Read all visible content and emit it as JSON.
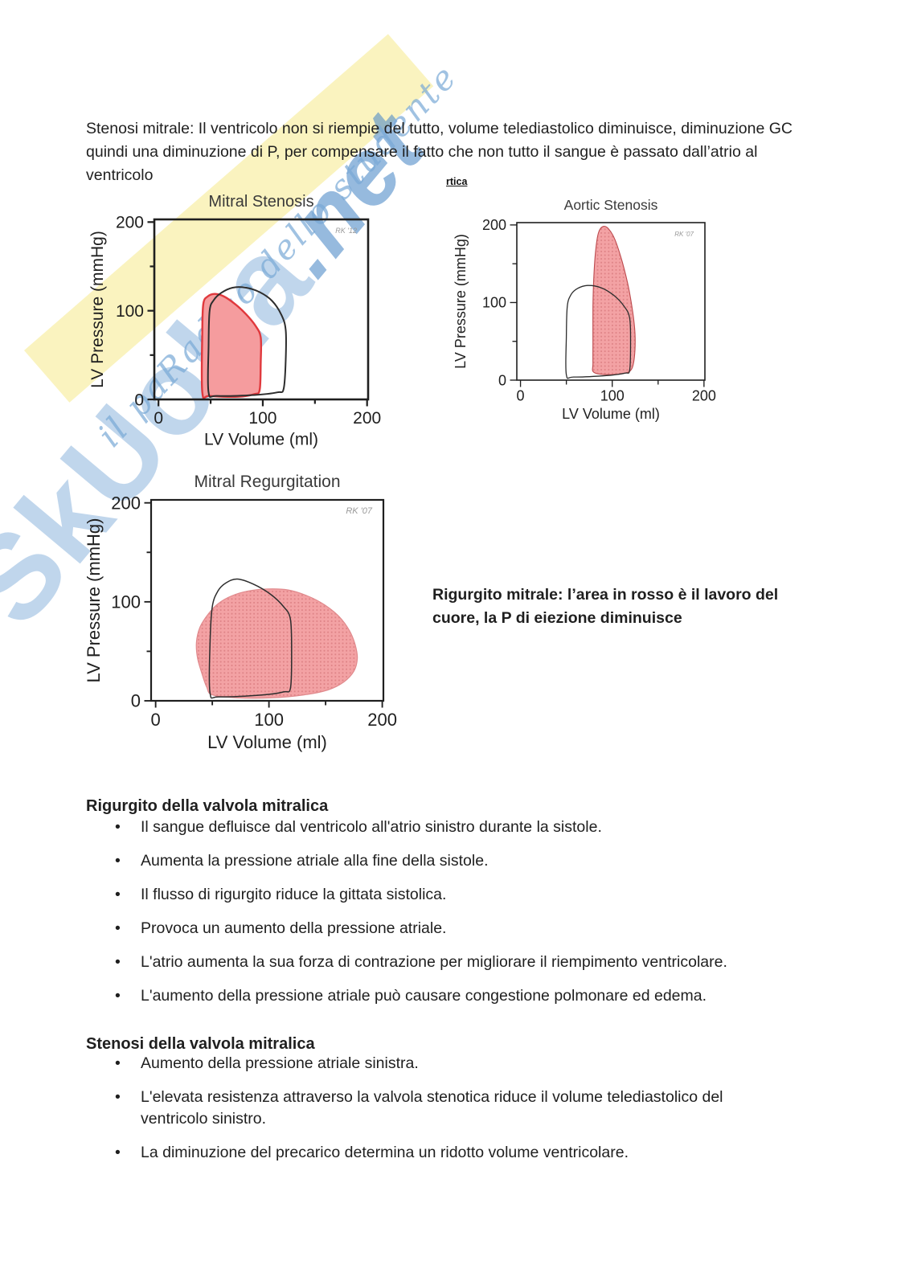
{
  "document": {
    "intro_paragraph": "Stenosi mitrale: Il ventricolo non si riempie del tutto, volume telediastolico diminuisce, diminuzione GC quindi una diminuzione di P, per compensare il fatto che non tutto il sangue è passato dall’atrio al ventricolo",
    "heading_fragment": "rtica",
    "caption": "Rigurgito mitrale: l’area in rosso è il lavoro del cuore, la P di eiezione diminuisce",
    "bullet_glyph": "•"
  },
  "watermark": {
    "brand": "SkUoLa",
    "brand_suffix": ".net",
    "tagline": "il paRadiso dello studente",
    "colors": {
      "blue": "#8db5dd",
      "yellow": "#faf3bf"
    }
  },
  "sections": [
    {
      "heading": "Rigurgito della valvola mitralica",
      "bullets": [
        "Il sangue defluisce dal ventricolo all'atrio sinistro durante la sistole.",
        "Aumenta la pressione atriale alla fine della sistole.",
        "Il flusso di rigurgito riduce la gittata sistolica.",
        "Provoca un aumento della pressione atriale.",
        "L'atrio aumenta la sua forza di contrazione per migliorare il riempimento ventricolare.",
        "L'aumento della pressione atriale può causare congestione polmonare ed edema."
      ]
    },
    {
      "heading": "Stenosi della valvola mitralica",
      "bullets": [
        "Aumento della pressione atriale sinistra.",
        "L'elevata resistenza attraverso la valvola stenotica riduce il volume telediastolico del ventricolo sinistro.",
        "La diminuzione del precarico determina un ridotto volume ventricolare."
      ]
    }
  ],
  "chart_data": [
    {
      "type": "area",
      "title": "Mitral Stenosis",
      "annotation": "RK '12",
      "xlabel": "LV  Volume (ml)",
      "ylabel": "LV  Pressure (mmHg)",
      "xlim": [
        -4,
        201
      ],
      "ylim": [
        0,
        203
      ],
      "x_ticks": [
        0,
        100,
        200
      ],
      "y_ticks": [
        0,
        100,
        200
      ],
      "x_minor_ticks": [
        50,
        150
      ],
      "y_minor_ticks": [
        50,
        150
      ],
      "grid": false,
      "legend": "none",
      "series": [
        {
          "name": "mitral-stenosis-loop",
          "label": "Mitral stenosis PV loop (red)",
          "stroke": "#e0393d",
          "fill": "#f59c9e",
          "points": [
            [
              42,
              8
            ],
            [
              49,
              4
            ],
            [
              76,
              3
            ],
            [
              92,
              6
            ],
            [
              97,
              11
            ],
            [
              98,
              42
            ],
            [
              98,
              70
            ],
            [
              93,
              83
            ],
            [
              84,
              96
            ],
            [
              74,
              107
            ],
            [
              63,
              116
            ],
            [
              54,
              119
            ],
            [
              47,
              116
            ],
            [
              43,
              108
            ],
            [
              42,
              78
            ]
          ]
        },
        {
          "name": "normal-loop",
          "label": "Normal PV loop (black)",
          "stroke": "#2d2d2d",
          "fill": "none",
          "points": [
            [
              48,
              8
            ],
            [
              56,
              4
            ],
            [
              92,
              5
            ],
            [
              114,
              8
            ],
            [
              120,
              12
            ],
            [
              122,
              45
            ],
            [
              122,
              78
            ],
            [
              118,
              95
            ],
            [
              109,
              111
            ],
            [
              97,
              121
            ],
            [
              84,
              126
            ],
            [
              71,
              126
            ],
            [
              60,
              120
            ],
            [
              53,
              112
            ],
            [
              49,
              100
            ],
            [
              48,
              60
            ]
          ]
        }
      ]
    },
    {
      "type": "area",
      "title": "Aortic Stenosis",
      "annotation": "RK '07",
      "xlabel": "LV  Volume (ml)",
      "ylabel": "LV  Pressure (mmHg)",
      "xlim": [
        -4,
        201
      ],
      "ylim": [
        0,
        203
      ],
      "x_ticks": [
        0,
        100,
        200
      ],
      "y_ticks": [
        0,
        100,
        200
      ],
      "x_minor_ticks": [
        50,
        150
      ],
      "y_minor_ticks": [
        50,
        150
      ],
      "grid": false,
      "legend": "none",
      "series": [
        {
          "name": "aortic-stenosis-loop",
          "label": "Aortic stenosis PV loop (red)",
          "stroke": "#bc4a4e",
          "fill": "dots",
          "points": [
            [
              80,
              10
            ],
            [
              96,
              7
            ],
            [
              114,
              9
            ],
            [
              121,
              14
            ],
            [
              124,
              28
            ],
            [
              125,
              55
            ],
            [
              123,
              82
            ],
            [
              118,
              118
            ],
            [
              111,
              152
            ],
            [
              103,
              181
            ],
            [
              96,
              195
            ],
            [
              90,
              198
            ],
            [
              85,
              190
            ],
            [
              82,
              168
            ],
            [
              80,
              135
            ],
            [
              79,
              95
            ],
            [
              79,
              50
            ],
            [
              79,
              22
            ]
          ]
        },
        {
          "name": "normal-loop",
          "label": "Normal PV loop (black)",
          "stroke": "#2d2d2d",
          "fill": "none",
          "points": [
            [
              50,
              7
            ],
            [
              58,
              4
            ],
            [
              95,
              6
            ],
            [
              114,
              9
            ],
            [
              119,
              13
            ],
            [
              120,
              48
            ],
            [
              119,
              80
            ],
            [
              113,
              95
            ],
            [
              102,
              109
            ],
            [
              88,
              119
            ],
            [
              73,
              122
            ],
            [
              62,
              118
            ],
            [
              55,
              110
            ],
            [
              51,
              95
            ],
            [
              50,
              55
            ]
          ]
        }
      ]
    },
    {
      "type": "area",
      "title": "Mitral Regurgitation",
      "annotation": "RK '07",
      "xlabel": "LV  Volume (ml)",
      "ylabel": "LV  Pressure (mmHg)",
      "xlim": [
        -4,
        201
      ],
      "ylim": [
        0,
        203
      ],
      "x_ticks": [
        0,
        100,
        200
      ],
      "y_ticks": [
        0,
        100,
        200
      ],
      "x_minor_ticks": [
        50,
        150
      ],
      "y_minor_ticks": [
        50,
        150
      ],
      "grid": false,
      "legend": "none",
      "series": [
        {
          "name": "mitral-regurgitation-loop",
          "label": "Mitral regurgitation PV loop (red)",
          "stroke": "#e08a8d",
          "fill": "dots",
          "points": [
            [
              50,
              6
            ],
            [
              72,
              3
            ],
            [
              102,
              3
            ],
            [
              131,
              6
            ],
            [
              152,
              11
            ],
            [
              166,
              19
            ],
            [
              175,
              30
            ],
            [
              178,
              43
            ],
            [
              176,
              57
            ],
            [
              171,
              71
            ],
            [
              162,
              85
            ],
            [
              149,
              97
            ],
            [
              134,
              106
            ],
            [
              117,
              112
            ],
            [
              99,
              113
            ],
            [
              82,
              111
            ],
            [
              67,
              106
            ],
            [
              55,
              98
            ],
            [
              46,
              87
            ],
            [
              39,
              74
            ],
            [
              36,
              59
            ],
            [
              37,
              43
            ],
            [
              41,
              27
            ],
            [
              45,
              14
            ]
          ]
        },
        {
          "name": "normal-loop",
          "label": "Normal PV loop (black)",
          "stroke": "#2d2d2d",
          "fill": "none",
          "points": [
            [
              48,
              8
            ],
            [
              56,
              4
            ],
            [
              95,
              6
            ],
            [
              113,
              9
            ],
            [
              119,
              13
            ],
            [
              120,
              48
            ],
            [
              119,
              82
            ],
            [
              113,
              95
            ],
            [
              101,
              108
            ],
            [
              86,
              118
            ],
            [
              72,
              123
            ],
            [
              62,
              119
            ],
            [
              55,
              111
            ],
            [
              50,
              95
            ],
            [
              48,
              58
            ]
          ]
        }
      ]
    }
  ]
}
